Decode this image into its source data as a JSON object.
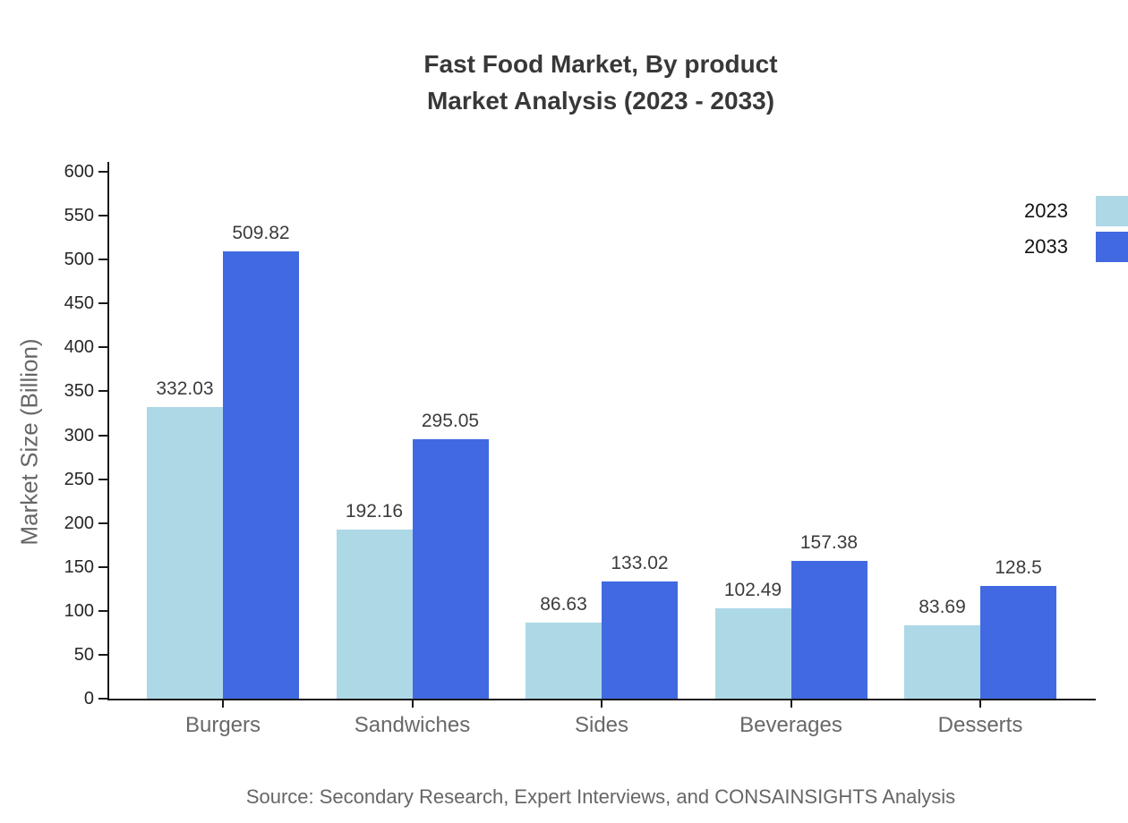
{
  "title": {
    "line1": "Fast Food Market, By product",
    "line2": "Market Analysis (2023 - 2033)"
  },
  "source": "Source: Secondary Research, Expert Interviews, and CONSAINSIGHTS Analysis",
  "chart_data": {
    "type": "bar",
    "title": "Fast Food Market, By product Market Analysis (2023 - 2033)",
    "categories": [
      "Burgers",
      "Sandwiches",
      "Sides",
      "Beverages",
      "Desserts"
    ],
    "series": [
      {
        "name": "2023",
        "color": "#ADD8E6",
        "values": [
          332.03,
          192.16,
          86.63,
          102.49,
          83.69
        ]
      },
      {
        "name": "2033",
        "color": "#4169E1",
        "values": [
          509.82,
          295.05,
          133.02,
          157.38,
          128.5
        ]
      }
    ],
    "xlabel": "",
    "ylabel": "Market Size (Billion)",
    "ylim": [
      0,
      600
    ],
    "ytick_step": 50,
    "grid": false,
    "legend_position": "top-right",
    "bar_value_labels": true
  }
}
